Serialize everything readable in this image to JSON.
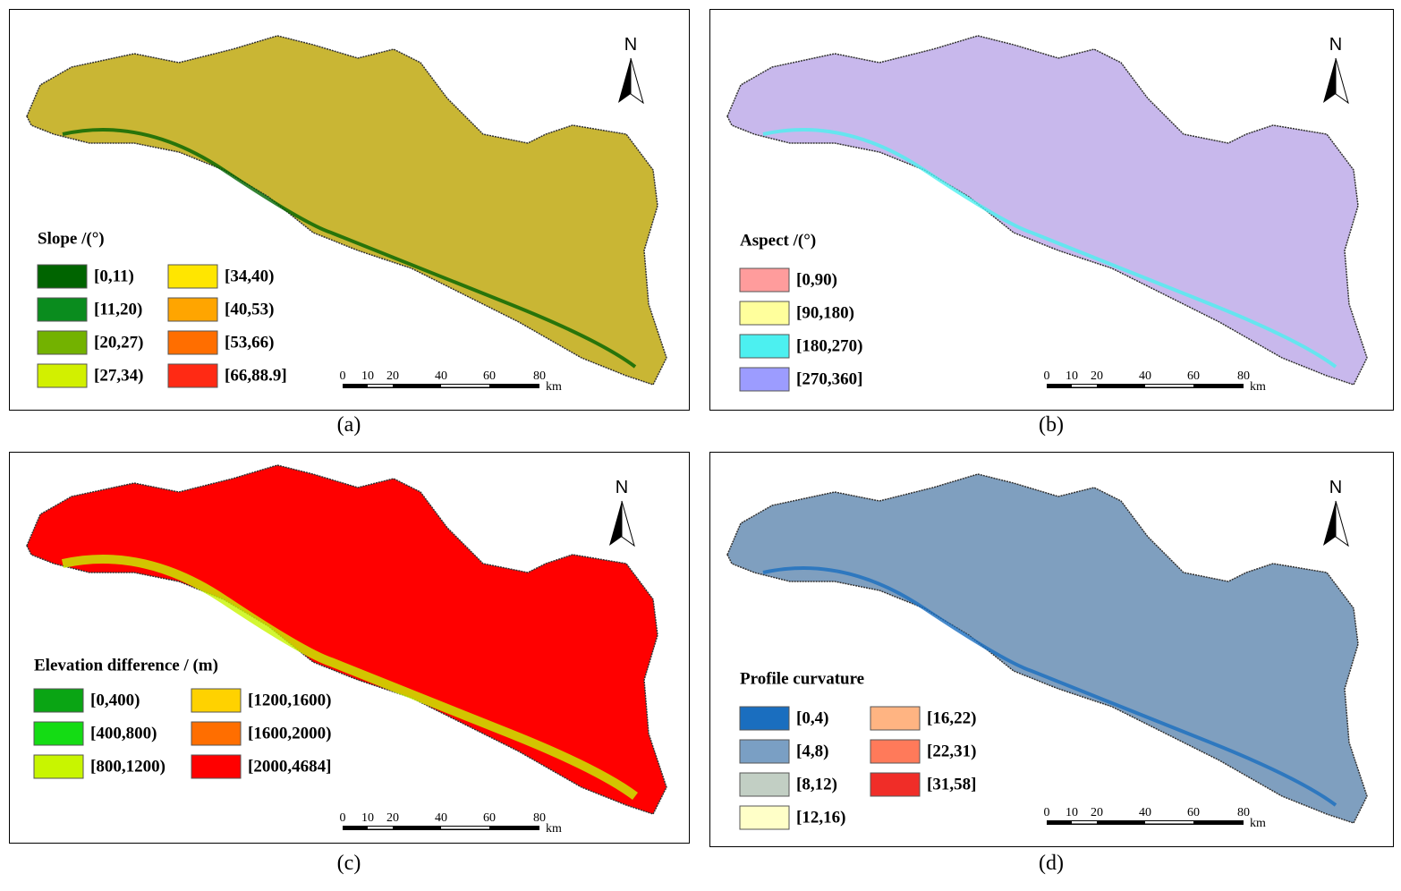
{
  "panels": [
    {
      "caption": "(a)",
      "north": "N",
      "scale_labels": [
        "0",
        "10",
        "20",
        "40",
        "60",
        "80",
        "km"
      ],
      "region_color": "#c9b634",
      "legend": {
        "title": "Slope /(°)",
        "items": [
          {
            "label": "[0,11)",
            "color": "#006400"
          },
          {
            "label": "[11,20)",
            "color": "#0a8c1e"
          },
          {
            "label": "[20,27)",
            "color": "#73b200"
          },
          {
            "label": "[27,34)",
            "color": "#d2f000"
          },
          {
            "label": "[34,40)",
            "color": "#ffe600"
          },
          {
            "label": "[40,53)",
            "color": "#ffa500"
          },
          {
            "label": "[53,66)",
            "color": "#ff6e00"
          },
          {
            "label": "[66,88.9]",
            "color": "#ff2a14"
          }
        ]
      }
    },
    {
      "caption": "(b)",
      "north": "N",
      "scale_labels": [
        "0",
        "10",
        "20",
        "40",
        "60",
        "80",
        "km"
      ],
      "region_color": "#c8b8ec",
      "legend": {
        "title": "Aspect /(°)",
        "items": [
          {
            "label": "[0,90)",
            "color": "#ff9c9c"
          },
          {
            "label": "[90,180)",
            "color": "#ffff9c"
          },
          {
            "label": "[180,270)",
            "color": "#4cf0f0"
          },
          {
            "label": "[270,360]",
            "color": "#9c9cff"
          }
        ]
      }
    },
    {
      "caption": "(c)",
      "north": "N",
      "scale_labels": [
        "0",
        "10",
        "20",
        "40",
        "60",
        "80",
        "km"
      ],
      "region_color": "#ff0000",
      "legend": {
        "title": "Elevation difference / (m)",
        "items": [
          {
            "label": "[0,400)",
            "color": "#0aa514"
          },
          {
            "label": "[400,800)",
            "color": "#14dc14"
          },
          {
            "label": "[800,1200)",
            "color": "#c8f500"
          },
          {
            "label": "[1200,1600)",
            "color": "#ffd200"
          },
          {
            "label": "[1600,2000)",
            "color": "#ff6e00"
          },
          {
            "label": "[2000,4684]",
            "color": "#ff0000"
          }
        ]
      }
    },
    {
      "caption": "(d)",
      "north": "N",
      "scale_labels": [
        "0",
        "10",
        "20",
        "40",
        "60",
        "80",
        "km"
      ],
      "region_color": "#7f9fbf",
      "legend": {
        "title": "Profile curvature",
        "items": [
          {
            "label": "[0,4)",
            "color": "#1a6ebf"
          },
          {
            "label": "[4,8)",
            "color": "#7a9fc4"
          },
          {
            "label": "[8,12)",
            "color": "#c2cfc4"
          },
          {
            "label": "[12,16)",
            "color": "#ffffc8"
          },
          {
            "label": "[16,22)",
            "color": "#ffb482"
          },
          {
            "label": "[22,31)",
            "color": "#ff7a5a"
          },
          {
            "label": "[31,58]",
            "color": "#f02d28"
          }
        ]
      }
    }
  ]
}
